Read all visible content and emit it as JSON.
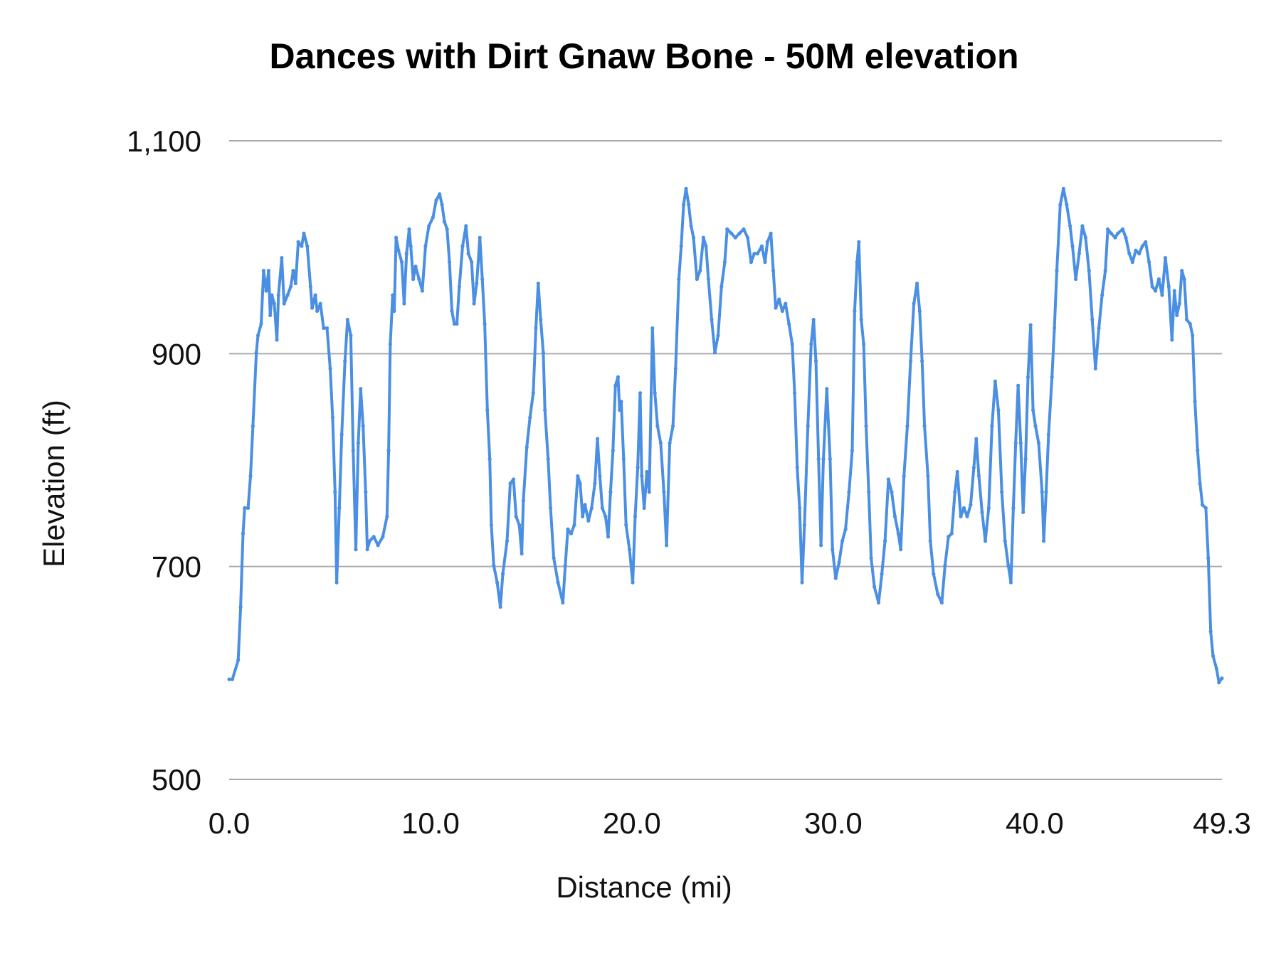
{
  "chart_data": {
    "type": "line",
    "title": "Dances with Dirt Gnaw Bone - 50M elevation",
    "xlabel": "Distance (mi)",
    "ylabel": "Elevation (ft)",
    "xlim": [
      0,
      49.3
    ],
    "ylim": [
      500,
      1100
    ],
    "x_ticks": [
      0,
      10,
      20,
      30,
      40,
      49.3
    ],
    "x_tick_labels": [
      "0.0",
      "10.0",
      "20.0",
      "30.0",
      "40.0",
      "49.3"
    ],
    "y_ticks": [
      500,
      700,
      900,
      1100
    ],
    "y_tick_labels": [
      "500",
      "700",
      "900",
      "1,100"
    ],
    "grid": "horizontal",
    "legend": "none",
    "markers": true,
    "line_color": "#4a8fe3",
    "grid_color": "#aaaaaa",
    "points": [
      [
        0,
        594
      ],
      [
        0.16,
        594
      ],
      [
        0.45,
        612
      ],
      [
        0.57,
        662
      ],
      [
        0.69,
        731
      ],
      [
        0.77,
        755
      ],
      [
        0.94,
        755
      ],
      [
        1.06,
        785
      ],
      [
        1.18,
        832
      ],
      [
        1.35,
        901
      ],
      [
        1.43,
        917
      ],
      [
        1.59,
        928
      ],
      [
        1.71,
        978
      ],
      [
        1.84,
        959
      ],
      [
        1.96,
        978
      ],
      [
        2.04,
        936
      ],
      [
        2.12,
        955
      ],
      [
        2.24,
        947
      ],
      [
        2.37,
        913
      ],
      [
        2.45,
        955
      ],
      [
        2.61,
        990
      ],
      [
        2.73,
        947
      ],
      [
        2.9,
        955
      ],
      [
        3.06,
        963
      ],
      [
        3.18,
        978
      ],
      [
        3.3,
        966
      ],
      [
        3.43,
        1005
      ],
      [
        3.6,
        1001
      ],
      [
        3.71,
        1013
      ],
      [
        3.88,
        1001
      ],
      [
        4.04,
        963
      ],
      [
        4.12,
        943
      ],
      [
        4.28,
        955
      ],
      [
        4.37,
        940
      ],
      [
        4.53,
        947
      ],
      [
        4.69,
        924
      ],
      [
        4.86,
        924
      ],
      [
        5.02,
        886
      ],
      [
        5.14,
        840
      ],
      [
        5.26,
        770
      ],
      [
        5.34,
        685
      ],
      [
        5.47,
        755
      ],
      [
        5.59,
        824
      ],
      [
        5.75,
        893
      ],
      [
        5.88,
        932
      ],
      [
        6.04,
        917
      ],
      [
        6.16,
        809
      ],
      [
        6.29,
        716
      ],
      [
        6.41,
        816
      ],
      [
        6.53,
        867
      ],
      [
        6.65,
        832
      ],
      [
        6.78,
        770
      ],
      [
        6.86,
        716
      ],
      [
        6.98,
        724
      ],
      [
        7.18,
        728
      ],
      [
        7.39,
        720
      ],
      [
        7.63,
        728
      ],
      [
        7.84,
        747
      ],
      [
        7.92,
        809
      ],
      [
        8.0,
        909
      ],
      [
        8.12,
        955
      ],
      [
        8.2,
        940
      ],
      [
        8.29,
        1009
      ],
      [
        8.41,
        997
      ],
      [
        8.57,
        986
      ],
      [
        8.69,
        947
      ],
      [
        8.81,
        994
      ],
      [
        8.94,
        1017
      ],
      [
        9.02,
        1001
      ],
      [
        9.14,
        970
      ],
      [
        9.26,
        982
      ],
      [
        9.43,
        970
      ],
      [
        9.59,
        959
      ],
      [
        9.75,
        1001
      ],
      [
        9.92,
        1020
      ],
      [
        10.12,
        1028
      ],
      [
        10.28,
        1044
      ],
      [
        10.45,
        1050
      ],
      [
        10.57,
        1040
      ],
      [
        10.69,
        1024
      ],
      [
        10.82,
        1017
      ],
      [
        10.94,
        986
      ],
      [
        11.06,
        940
      ],
      [
        11.18,
        928
      ],
      [
        11.31,
        928
      ],
      [
        11.43,
        963
      ],
      [
        11.59,
        1001
      ],
      [
        11.76,
        1020
      ],
      [
        11.88,
        994
      ],
      [
        12.04,
        986
      ],
      [
        12.16,
        947
      ],
      [
        12.29,
        966
      ],
      [
        12.45,
        1009
      ],
      [
        12.57,
        970
      ],
      [
        12.69,
        928
      ],
      [
        12.82,
        847
      ],
      [
        12.94,
        801
      ],
      [
        13.02,
        739
      ],
      [
        13.14,
        701
      ],
      [
        13.31,
        685
      ],
      [
        13.47,
        662
      ],
      [
        13.59,
        693
      ],
      [
        13.8,
        724
      ],
      [
        13.96,
        778
      ],
      [
        14.12,
        782
      ],
      [
        14.25,
        747
      ],
      [
        14.41,
        739
      ],
      [
        14.53,
        712
      ],
      [
        14.61,
        762
      ],
      [
        14.78,
        812
      ],
      [
        14.94,
        840
      ],
      [
        15.1,
        863
      ],
      [
        15.23,
        924
      ],
      [
        15.35,
        966
      ],
      [
        15.47,
        932
      ],
      [
        15.6,
        901
      ],
      [
        15.68,
        847
      ],
      [
        15.84,
        801
      ],
      [
        15.96,
        755
      ],
      [
        16.12,
        708
      ],
      [
        16.33,
        685
      ],
      [
        16.57,
        666
      ],
      [
        16.69,
        701
      ],
      [
        16.82,
        735
      ],
      [
        16.98,
        731
      ],
      [
        17.14,
        739
      ],
      [
        17.31,
        785
      ],
      [
        17.43,
        778
      ],
      [
        17.55,
        747
      ],
      [
        17.67,
        758
      ],
      [
        17.84,
        743
      ],
      [
        18.0,
        755
      ],
      [
        18.16,
        778
      ],
      [
        18.29,
        820
      ],
      [
        18.41,
        785
      ],
      [
        18.53,
        755
      ],
      [
        18.69,
        747
      ],
      [
        18.82,
        728
      ],
      [
        18.94,
        770
      ],
      [
        19.06,
        809
      ],
      [
        19.18,
        870
      ],
      [
        19.31,
        878
      ],
      [
        19.39,
        847
      ],
      [
        19.47,
        855
      ],
      [
        19.59,
        801
      ],
      [
        19.71,
        739
      ],
      [
        19.88,
        716
      ],
      [
        20.04,
        685
      ],
      [
        20.16,
        747
      ],
      [
        20.29,
        793
      ],
      [
        20.41,
        863
      ],
      [
        20.49,
        785
      ],
      [
        20.61,
        755
      ],
      [
        20.74,
        789
      ],
      [
        20.86,
        770
      ],
      [
        21.02,
        924
      ],
      [
        21.14,
        863
      ],
      [
        21.27,
        832
      ],
      [
        21.43,
        816
      ],
      [
        21.59,
        770
      ],
      [
        21.72,
        720
      ],
      [
        21.88,
        816
      ],
      [
        22.04,
        832
      ],
      [
        22.17,
        886
      ],
      [
        22.33,
        970
      ],
      [
        22.45,
        1001
      ],
      [
        22.57,
        1040
      ],
      [
        22.69,
        1055
      ],
      [
        22.82,
        1040
      ],
      [
        22.94,
        1020
      ],
      [
        23.06,
        1009
      ],
      [
        23.23,
        970
      ],
      [
        23.39,
        978
      ],
      [
        23.55,
        1009
      ],
      [
        23.68,
        1001
      ],
      [
        23.8,
        970
      ],
      [
        23.96,
        932
      ],
      [
        24.12,
        901
      ],
      [
        24.28,
        917
      ],
      [
        24.45,
        963
      ],
      [
        24.61,
        986
      ],
      [
        24.73,
        1017
      ],
      [
        24.94,
        1013
      ],
      [
        25.14,
        1009
      ],
      [
        25.34,
        1013
      ],
      [
        25.55,
        1017
      ],
      [
        25.75,
        1009
      ],
      [
        25.92,
        986
      ],
      [
        26.08,
        994
      ],
      [
        26.24,
        994
      ],
      [
        26.45,
        1001
      ],
      [
        26.61,
        986
      ],
      [
        26.73,
        1005
      ],
      [
        26.9,
        1013
      ],
      [
        27.02,
        978
      ],
      [
        27.14,
        943
      ],
      [
        27.31,
        951
      ],
      [
        27.47,
        940
      ],
      [
        27.63,
        947
      ],
      [
        27.8,
        928
      ],
      [
        27.96,
        909
      ],
      [
        28.08,
        863
      ],
      [
        28.21,
        793
      ],
      [
        28.33,
        755
      ],
      [
        28.45,
        685
      ],
      [
        28.57,
        739
      ],
      [
        28.74,
        832
      ],
      [
        28.9,
        909
      ],
      [
        29.02,
        932
      ],
      [
        29.14,
        893
      ],
      [
        29.27,
        801
      ],
      [
        29.39,
        720
      ],
      [
        29.51,
        801
      ],
      [
        29.68,
        867
      ],
      [
        29.84,
        801
      ],
      [
        29.96,
        716
      ],
      [
        30.12,
        689
      ],
      [
        30.29,
        704
      ],
      [
        30.45,
        724
      ],
      [
        30.61,
        735
      ],
      [
        30.78,
        770
      ],
      [
        30.94,
        809
      ],
      [
        31.06,
        940
      ],
      [
        31.18,
        986
      ],
      [
        31.27,
        1005
      ],
      [
        31.39,
        932
      ],
      [
        31.51,
        909
      ],
      [
        31.63,
        832
      ],
      [
        31.76,
        770
      ],
      [
        31.88,
        708
      ],
      [
        32.04,
        681
      ],
      [
        32.25,
        666
      ],
      [
        32.41,
        693
      ],
      [
        32.57,
        724
      ],
      [
        32.74,
        782
      ],
      [
        32.9,
        770
      ],
      [
        33.06,
        747
      ],
      [
        33.23,
        731
      ],
      [
        33.35,
        716
      ],
      [
        33.51,
        785
      ],
      [
        33.68,
        832
      ],
      [
        33.84,
        893
      ],
      [
        34.0,
        947
      ],
      [
        34.16,
        966
      ],
      [
        34.29,
        940
      ],
      [
        34.41,
        893
      ],
      [
        34.53,
        832
      ],
      [
        34.7,
        785
      ],
      [
        34.82,
        724
      ],
      [
        34.98,
        693
      ],
      [
        35.19,
        674
      ],
      [
        35.39,
        666
      ],
      [
        35.55,
        701
      ],
      [
        35.72,
        728
      ],
      [
        35.88,
        731
      ],
      [
        36.04,
        770
      ],
      [
        36.16,
        789
      ],
      [
        36.33,
        747
      ],
      [
        36.49,
        755
      ],
      [
        36.65,
        747
      ],
      [
        36.82,
        758
      ],
      [
        36.98,
        793
      ],
      [
        37.1,
        820
      ],
      [
        37.23,
        785
      ],
      [
        37.39,
        751
      ],
      [
        37.55,
        724
      ],
      [
        37.72,
        755
      ],
      [
        37.88,
        832
      ],
      [
        38.04,
        874
      ],
      [
        38.2,
        847
      ],
      [
        38.37,
        770
      ],
      [
        38.53,
        724
      ],
      [
        38.69,
        701
      ],
      [
        38.82,
        685
      ],
      [
        38.94,
        755
      ],
      [
        39.06,
        816
      ],
      [
        39.18,
        870
      ],
      [
        39.31,
        816
      ],
      [
        39.43,
        751
      ],
      [
        39.55,
        801
      ],
      [
        39.67,
        878
      ],
      [
        39.8,
        927
      ],
      [
        39.92,
        847
      ],
      [
        40.04,
        832
      ],
      [
        40.2,
        816
      ],
      [
        40.37,
        770
      ],
      [
        40.45,
        724
      ],
      [
        40.57,
        770
      ],
      [
        40.69,
        824
      ],
      [
        40.86,
        878
      ],
      [
        40.98,
        924
      ],
      [
        41.1,
        978
      ],
      [
        41.27,
        1040
      ],
      [
        41.43,
        1055
      ],
      [
        41.59,
        1040
      ],
      [
        41.76,
        1020
      ],
      [
        41.88,
        1001
      ],
      [
        42.04,
        970
      ],
      [
        42.21,
        994
      ],
      [
        42.37,
        1020
      ],
      [
        42.53,
        1009
      ],
      [
        42.7,
        978
      ],
      [
        42.86,
        932
      ],
      [
        43.02,
        886
      ],
      [
        43.19,
        924
      ],
      [
        43.35,
        955
      ],
      [
        43.51,
        978
      ],
      [
        43.63,
        1017
      ],
      [
        43.8,
        1013
      ],
      [
        44.0,
        1009
      ],
      [
        44.13,
        1013
      ],
      [
        44.37,
        1017
      ],
      [
        44.53,
        1009
      ],
      [
        44.7,
        994
      ],
      [
        44.86,
        986
      ],
      [
        45.02,
        997
      ],
      [
        45.19,
        994
      ],
      [
        45.35,
        1001
      ],
      [
        45.51,
        1005
      ],
      [
        45.68,
        986
      ],
      [
        45.84,
        963
      ],
      [
        46.0,
        959
      ],
      [
        46.17,
        970
      ],
      [
        46.33,
        955
      ],
      [
        46.49,
        990
      ],
      [
        46.66,
        963
      ],
      [
        46.82,
        913
      ],
      [
        46.94,
        959
      ],
      [
        47.06,
        936
      ],
      [
        47.19,
        947
      ],
      [
        47.31,
        978
      ],
      [
        47.43,
        970
      ],
      [
        47.55,
        932
      ],
      [
        47.72,
        928
      ],
      [
        47.84,
        917
      ],
      [
        47.96,
        855
      ],
      [
        48.09,
        809
      ],
      [
        48.21,
        778
      ],
      [
        48.33,
        758
      ],
      [
        48.5,
        755
      ],
      [
        48.62,
        708
      ],
      [
        48.74,
        639
      ],
      [
        48.86,
        616
      ],
      [
        49.03,
        604
      ],
      [
        49.15,
        591
      ],
      [
        49.3,
        595
      ]
    ]
  }
}
